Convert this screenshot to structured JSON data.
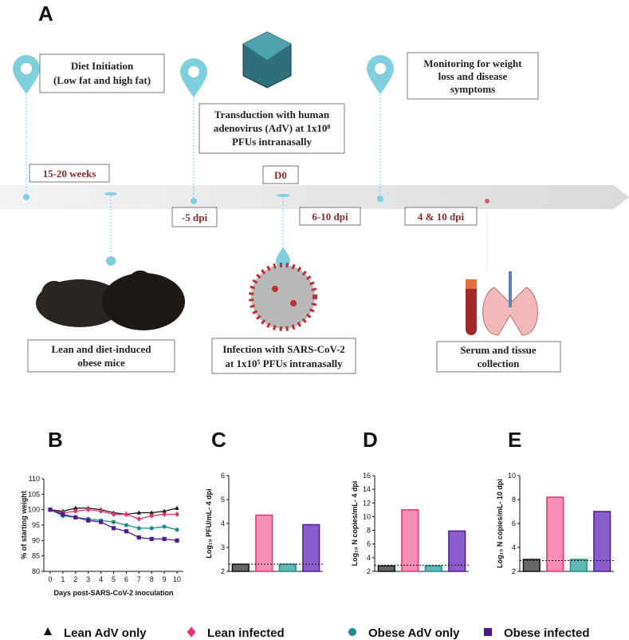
{
  "schematic": {
    "title": "A",
    "diet": [
      "Diet Initiation",
      "(Low fat and high fat)"
    ],
    "transduction": [
      "Transduction with human",
      "adenovirus (AdV) at 1x10⁸",
      "PFUs  intranasally"
    ],
    "monitoring": [
      "Monitoring for weight",
      "loss and disease",
      "symptoms"
    ],
    "weeks": "15-20 weeks",
    "d0": "D0",
    "minus5": "-5 dpi",
    "dpi610": "6-10 dpi",
    "dpi410": "4 & 10 dpi",
    "mice": [
      "Lean and diet-induced",
      "obese mice"
    ],
    "infection": [
      "Infection with SARS-CoV-2",
      "at 1x10⁵ PFUs  intranasally"
    ],
    "serum": [
      "Serum and tissue",
      "collection"
    ]
  },
  "chart_data": [
    {
      "type": "line",
      "title": "B",
      "xlabel": "Days post-SARS-CoV-2 inoculation",
      "ylabel": "% of starting weight",
      "x": [
        0,
        1,
        2,
        3,
        4,
        5,
        6,
        7,
        8,
        9,
        10
      ],
      "xlim": [
        -0.5,
        10.5
      ],
      "xticks": [
        0,
        1,
        2,
        3,
        4,
        5,
        6,
        7,
        8,
        9,
        10
      ],
      "ylim": [
        80,
        110
      ],
      "yticks": [
        80,
        85,
        90,
        95,
        100,
        105,
        110
      ],
      "series": [
        {
          "name": "Lean AdV only",
          "color": "#111111",
          "marker": "triangle",
          "values": [
            100,
            99.5,
            100.5,
            100.5,
            100,
            99,
            98.5,
            99,
            99,
            99.5,
            100.5
          ]
        },
        {
          "name": "Lean infected",
          "color": "#e8336f",
          "marker": "diamond",
          "values": [
            100,
            99,
            99.5,
            100,
            99.5,
            98.5,
            98.5,
            97,
            98,
            98.5,
            98.5
          ]
        },
        {
          "name": "Obese AdV only",
          "color": "#1f8a8a",
          "marker": "circle",
          "values": [
            100,
            98,
            97.5,
            97,
            96.5,
            96,
            95,
            94,
            94,
            94.5,
            93.5
          ]
        },
        {
          "name": "Obese infected",
          "color": "#4b1d8c",
          "marker": "square",
          "values": [
            100,
            98.5,
            97.5,
            96.5,
            96,
            94,
            93,
            91,
            90.5,
            90.5,
            90
          ]
        }
      ]
    },
    {
      "type": "bar",
      "title": "C",
      "ylabel": "Log₁₀ PFU/mL- 4 dpi",
      "categories": [
        null,
        null,
        null,
        null
      ],
      "values": [
        2.3,
        4.35,
        2.3,
        3.95
      ],
      "colors": [
        "#666666",
        "#f58fb8",
        "#5fb8b4",
        "#8a5ccc"
      ],
      "edge_colors": [
        "#111111",
        "#e8336f",
        "#1f8a8a",
        "#4b1d8c"
      ],
      "ylim": [
        2,
        6
      ],
      "yticks": [
        2,
        3,
        4,
        5,
        6
      ],
      "reference_line": 2.3
    },
    {
      "type": "bar",
      "title": "D",
      "ylabel": "Log₁₀ N copies/mL- 4 dpi",
      "categories": [
        null,
        null,
        null,
        null
      ],
      "values": [
        2.8,
        11,
        2.8,
        7.9
      ],
      "colors": [
        "#666666",
        "#f58fb8",
        "#5fb8b4",
        "#8a5ccc"
      ],
      "edge_colors": [
        "#111111",
        "#e8336f",
        "#1f8a8a",
        "#4b1d8c"
      ],
      "ylim": [
        2,
        16
      ],
      "yticks": [
        2,
        4,
        6,
        8,
        10,
        12,
        14,
        16
      ],
      "reference_line": 2.9
    },
    {
      "type": "bar",
      "title": "E",
      "ylabel": "Log₁₀ N copies/mL- 10 dpi",
      "categories": [
        null,
        null,
        null,
        null
      ],
      "values": [
        3,
        8.2,
        3,
        7
      ],
      "colors": [
        "#666666",
        "#f58fb8",
        "#5fb8b4",
        "#8a5ccc"
      ],
      "edge_colors": [
        "#111111",
        "#e8336f",
        "#1f8a8a",
        "#4b1d8c"
      ],
      "ylim": [
        2,
        10
      ],
      "yticks": [
        2,
        4,
        6,
        8,
        10
      ],
      "reference_line": 2.9
    }
  ]
}
